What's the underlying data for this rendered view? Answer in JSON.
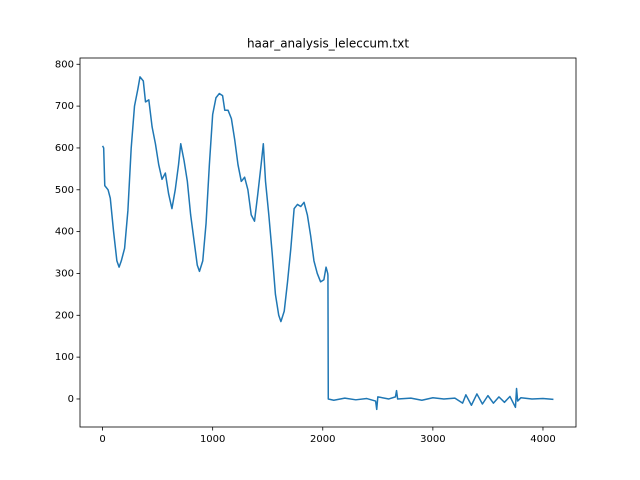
{
  "chart_data": {
    "type": "line",
    "title": "haar_analysis_leleccum.txt",
    "color": "#1f77b4",
    "x": [
      0,
      10,
      20,
      50,
      70,
      100,
      130,
      150,
      170,
      200,
      230,
      260,
      290,
      320,
      340,
      370,
      390,
      420,
      450,
      480,
      510,
      540,
      570,
      600,
      630,
      660,
      690,
      710,
      740,
      770,
      800,
      830,
      860,
      880,
      910,
      940,
      970,
      1000,
      1030,
      1060,
      1090,
      1110,
      1140,
      1170,
      1200,
      1230,
      1260,
      1290,
      1320,
      1350,
      1380,
      1410,
      1440,
      1460,
      1480,
      1510,
      1540,
      1570,
      1600,
      1620,
      1650,
      1680,
      1710,
      1740,
      1770,
      1800,
      1830,
      1860,
      1890,
      1920,
      1950,
      1980,
      2010,
      2030,
      2045,
      2047,
      2050,
      2100,
      2200,
      2300,
      2400,
      2480,
      2490,
      2500,
      2600,
      2660,
      2670,
      2680,
      2800,
      2900,
      3000,
      3100,
      3200,
      3270,
      3300,
      3350,
      3400,
      3450,
      3500,
      3550,
      3600,
      3650,
      3700,
      3750,
      3760,
      3770,
      3800,
      3900,
      4000,
      4095
    ],
    "values": [
      605,
      600,
      510,
      500,
      480,
      400,
      330,
      315,
      330,
      360,
      450,
      600,
      700,
      740,
      770,
      760,
      710,
      715,
      650,
      610,
      560,
      525,
      540,
      490,
      455,
      500,
      560,
      610,
      570,
      520,
      440,
      380,
      320,
      305,
      330,
      420,
      560,
      680,
      720,
      730,
      725,
      690,
      690,
      670,
      620,
      560,
      520,
      530,
      500,
      440,
      425,
      490,
      560,
      610,
      520,
      440,
      350,
      250,
      200,
      185,
      210,
      280,
      360,
      455,
      465,
      460,
      470,
      440,
      390,
      330,
      300,
      280,
      285,
      315,
      300,
      295,
      0,
      -3,
      2,
      -2,
      1,
      -5,
      -25,
      5,
      0,
      5,
      20,
      0,
      2,
      -3,
      3,
      0,
      2,
      -10,
      10,
      -15,
      12,
      -12,
      8,
      -10,
      5,
      -8,
      6,
      -20,
      25,
      -5,
      3,
      0,
      1,
      -1
    ],
    "xlim": [
      -205,
      4300
    ],
    "ylim": [
      -67,
      815
    ],
    "xticks": [
      0,
      1000,
      2000,
      3000,
      4000
    ],
    "yticks": [
      0,
      100,
      200,
      300,
      400,
      500,
      600,
      700,
      800
    ]
  }
}
